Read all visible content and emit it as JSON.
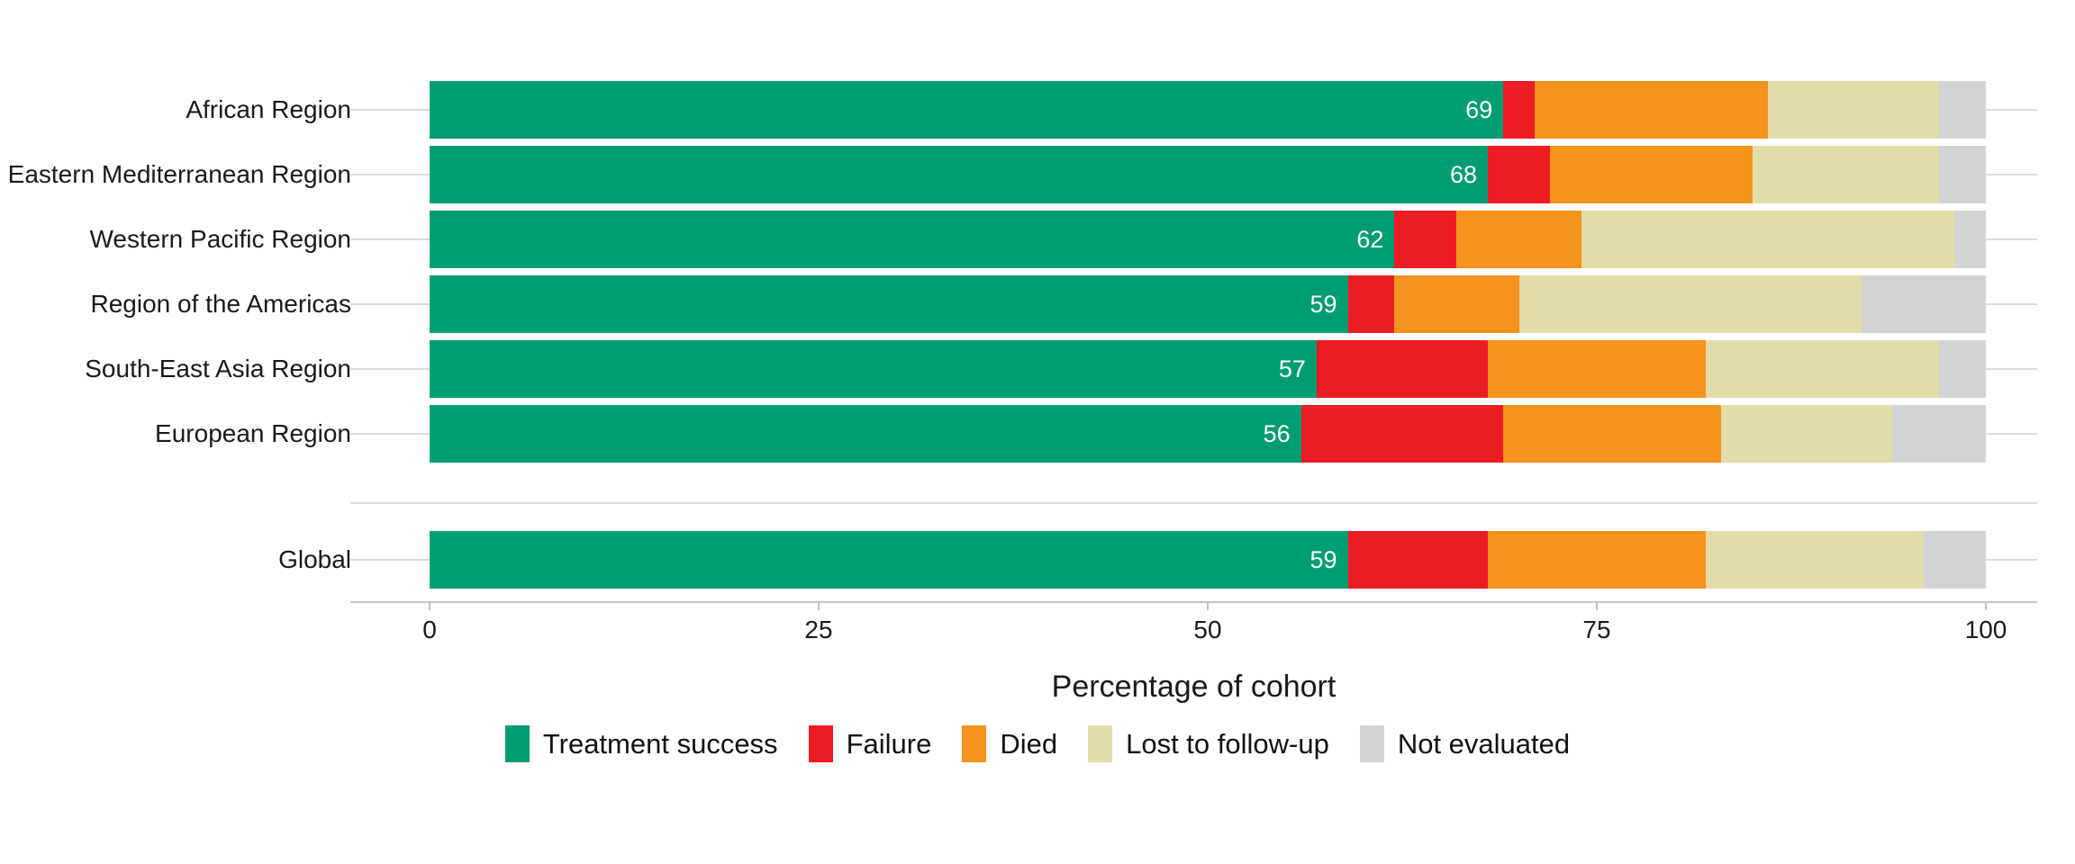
{
  "chart_data": {
    "type": "bar",
    "orientation": "horizontal",
    "stacked": true,
    "title": "",
    "xlabel": "Percentage of cohort",
    "ylabel": "",
    "xlim": [
      0,
      100
    ],
    "x_ticks": [
      0,
      25,
      50,
      75,
      100
    ],
    "grid": "horizontal-major",
    "legend_position": "bottom",
    "categories": [
      "African Region",
      "Eastern Mediterranean Region",
      "Western Pacific Region",
      "Region of the Americas",
      "South-East Asia Region",
      "European Region",
      "Global"
    ],
    "series": [
      {
        "name": "Treatment success",
        "color": "#009d72",
        "values": [
          69,
          68,
          62,
          59,
          57,
          56,
          59
        ]
      },
      {
        "name": "Failure",
        "color": "#ec1c24",
        "values": [
          2,
          4,
          4,
          3,
          11,
          13,
          9
        ]
      },
      {
        "name": "Died",
        "color": "#f6921e",
        "values": [
          15,
          13,
          8,
          8,
          14,
          14,
          14
        ]
      },
      {
        "name": "Lost to follow-up",
        "color": "#e2dca8",
        "values": [
          11,
          12,
          24,
          22,
          15,
          11,
          14
        ]
      },
      {
        "name": "Not evaluated",
        "color": "#d1d3d4",
        "values": [
          3,
          3,
          2,
          8,
          3,
          6,
          4
        ]
      }
    ],
    "bar_value_labels": [
      "69",
      "68",
      "62",
      "59",
      "57",
      "56",
      "59"
    ],
    "bar_value_label_color": "#ffffff"
  },
  "axis": {
    "x_title": "Percentage of cohort",
    "tick_labels": [
      "0",
      "25",
      "50",
      "75",
      "100"
    ]
  },
  "legend": {
    "items": [
      {
        "label": "Treatment success",
        "color": "#009d72"
      },
      {
        "label": "Failure",
        "color": "#ec1c24"
      },
      {
        "label": "Died",
        "color": "#f6921e"
      },
      {
        "label": "Lost to follow-up",
        "color": "#e2dca8"
      },
      {
        "label": "Not evaluated",
        "color": "#d1d3d4"
      }
    ]
  },
  "colors": {
    "gridline": "#dcdcdc",
    "axis_line": "#c6c6c6",
    "text": "#1a1a1a",
    "background": "#ffffff"
  }
}
